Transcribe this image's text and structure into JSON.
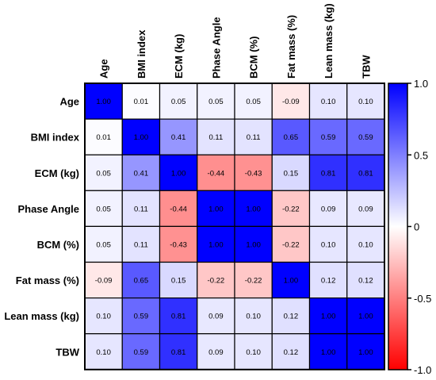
{
  "chart_data": {
    "type": "heatmap",
    "title": "",
    "labels": [
      "Age",
      "BMI index",
      "ECM (kg)",
      "Phase Angle",
      "BCM (%)",
      "Fat mass (%)",
      "Lean mass (kg)",
      "TBW"
    ],
    "matrix": [
      [
        1.0,
        0.01,
        0.05,
        0.05,
        0.05,
        -0.09,
        0.1,
        0.1
      ],
      [
        0.01,
        1.0,
        0.41,
        0.11,
        0.11,
        0.65,
        0.59,
        0.59
      ],
      [
        0.05,
        0.41,
        1.0,
        -0.44,
        -0.43,
        0.15,
        0.81,
        0.81
      ],
      [
        0.05,
        0.11,
        -0.44,
        1.0,
        1.0,
        -0.22,
        0.09,
        0.09
      ],
      [
        0.05,
        0.11,
        -0.43,
        1.0,
        1.0,
        -0.22,
        0.1,
        0.1
      ],
      [
        -0.09,
        0.65,
        0.15,
        -0.22,
        -0.22,
        1.0,
        0.12,
        0.12
      ],
      [
        0.1,
        0.59,
        0.81,
        0.09,
        0.1,
        0.12,
        1.0,
        1.0
      ],
      [
        0.1,
        0.59,
        0.81,
        0.09,
        0.1,
        0.12,
        1.0,
        1.0
      ]
    ],
    "value_range": [
      -1.0,
      1.0
    ],
    "colorbar": {
      "ticks": [
        "1.0",
        "0.5",
        "0",
        "-0.5",
        "-1.0"
      ],
      "tick_values": [
        1.0,
        0.5,
        0,
        -0.5,
        -1.0
      ],
      "color_max": "#0000FF",
      "color_mid": "#FFFFFF",
      "color_min": "#FF0000"
    },
    "legend": "right"
  }
}
